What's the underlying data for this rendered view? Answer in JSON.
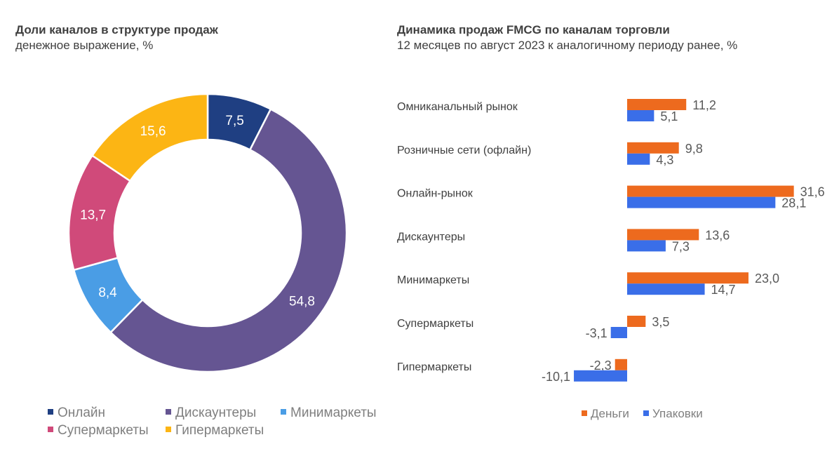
{
  "left_chart": {
    "title": "Доли каналов в структуре продаж",
    "subtitle": "денежное выражение, %"
  },
  "right_chart": {
    "title": "Динамика продаж FMCG по каналам торговли",
    "subtitle": "12 месяцев по август 2023 к аналогичному периоду ранее, %"
  },
  "chart_data": [
    {
      "type": "pie",
      "donut": true,
      "title": "Доли каналов в структуре продаж",
      "subtitle": "денежное выражение, %",
      "legend_position": "bottom",
      "slices": [
        {
          "label": "Онлайн",
          "value": 7.5,
          "display": "7,5",
          "color": "#1f3f82"
        },
        {
          "label": "Дискаунтеры",
          "value": 54.8,
          "display": "54,8",
          "color": "#655592"
        },
        {
          "label": "Минимаркеты",
          "value": 8.4,
          "display": "8,4",
          "color": "#4a9de5"
        },
        {
          "label": "Супермаркеты",
          "value": 13.7,
          "display": "13,7",
          "color": "#d04a7a"
        },
        {
          "label": "Гипермаркеты",
          "value": 15.6,
          "display": "15,6",
          "color": "#fcb514"
        }
      ]
    },
    {
      "type": "bar",
      "orientation": "horizontal",
      "title": "Динамика продаж FMCG по каналам торговли",
      "subtitle": "12 месяцев по август 2023 к аналогичному периоду ранее, %",
      "legend_position": "bottom",
      "categories": [
        "Омниканальный рынок",
        "Розничные сети (офлайн)",
        "Онлайн-рынок",
        "Дискаунтеры",
        "Минимаркеты",
        "Супермаркеты",
        "Гипермаркеты"
      ],
      "series": [
        {
          "name": "Деньги",
          "color": "#ed6a1e",
          "values": [
            11.2,
            9.8,
            31.6,
            13.6,
            23.0,
            3.5,
            -2.3
          ],
          "labels": [
            "11,2",
            "9,8",
            "31,6",
            "13,6",
            "23,0",
            "3,5",
            "-2,3"
          ]
        },
        {
          "name": "Упаковки",
          "color": "#3a6ee8",
          "values": [
            5.1,
            4.3,
            28.1,
            7.3,
            14.7,
            -3.1,
            -10.1
          ],
          "labels": [
            "5,1",
            "4,3",
            "28,1",
            "7,3",
            "14,7",
            "-3,1",
            "-10,1"
          ]
        }
      ]
    }
  ]
}
